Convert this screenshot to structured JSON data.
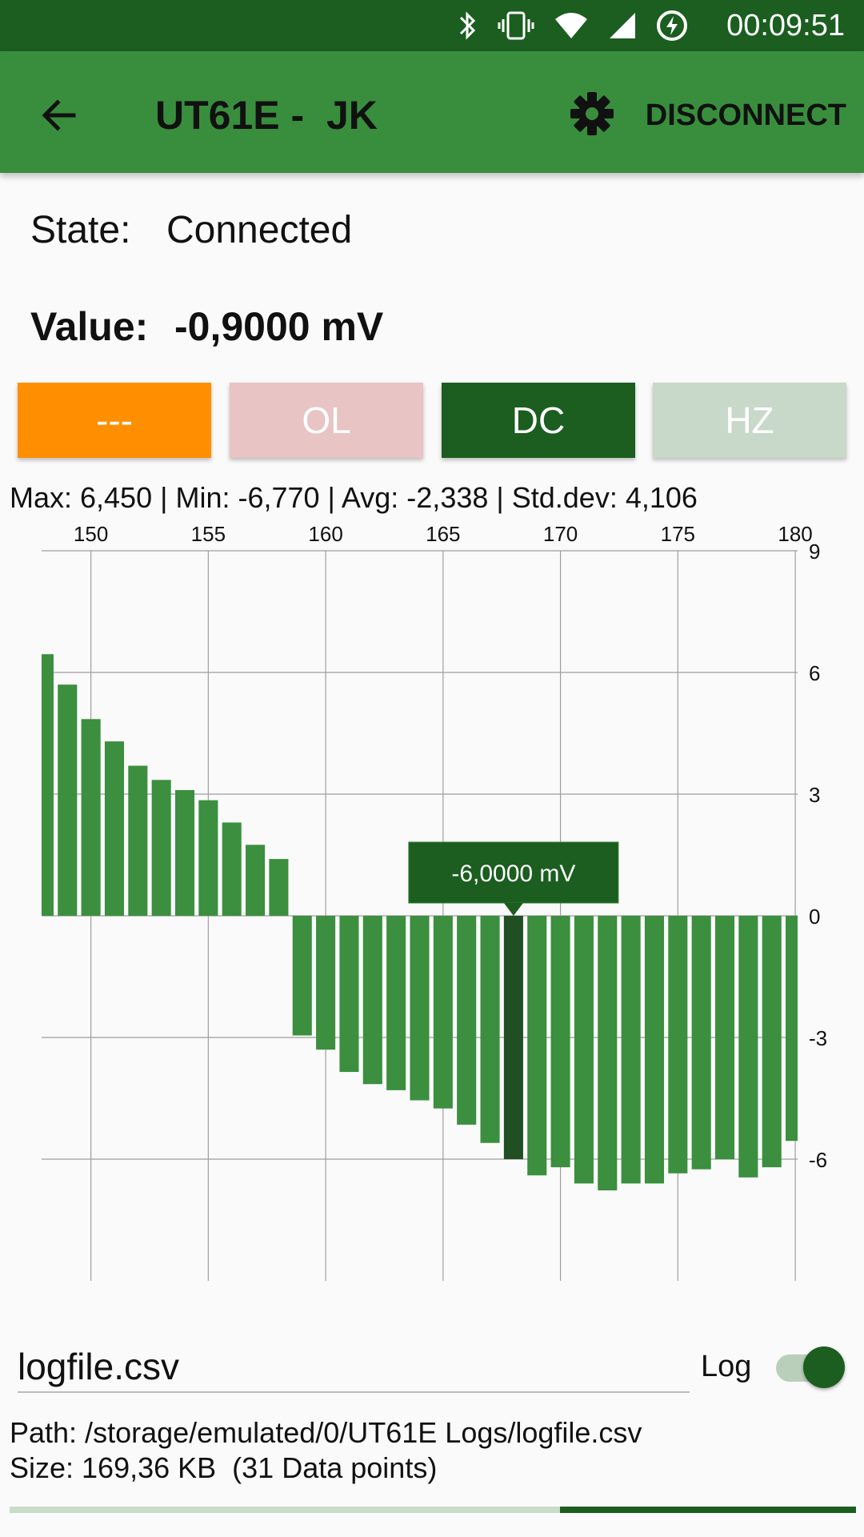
{
  "status_bar": {
    "time": "00:09:51",
    "icons": [
      "bluetooth-icon",
      "vibrate-icon",
      "wifi-icon",
      "signal-icon",
      "battery-charging-icon"
    ]
  },
  "app_bar": {
    "title": "UT61E -  JK",
    "disconnect_label": "DISCONNECT"
  },
  "state": {
    "label": "State:",
    "value": "Connected"
  },
  "reading": {
    "label": "Value:",
    "value": "-0,9000 mV"
  },
  "mode_buttons": [
    {
      "label": "---",
      "color": "#ff8f00"
    },
    {
      "label": "OL",
      "color": "#e8c4c4"
    },
    {
      "label": "DC",
      "color": "#1b5e20"
    },
    {
      "label": "HZ",
      "color": "#c8d8c9"
    }
  ],
  "stats_text": "Max: 6,450 | Min: -6,770 | Avg: -2,338 | Std.dev: 4,106",
  "chart_data": {
    "type": "bar",
    "x": [
      148,
      149,
      150,
      151,
      152,
      153,
      154,
      155,
      156,
      157,
      158,
      159,
      160,
      161,
      162,
      163,
      164,
      165,
      166,
      167,
      168,
      169,
      170,
      171,
      172,
      173,
      174,
      175,
      176,
      177,
      178,
      179,
      180
    ],
    "values": [
      6.45,
      5.7,
      4.85,
      4.3,
      3.7,
      3.35,
      3.1,
      2.85,
      2.3,
      1.75,
      1.4,
      -2.95,
      -3.3,
      -3.85,
      -4.15,
      -4.3,
      -4.55,
      -4.75,
      -5.15,
      -5.6,
      -6.0,
      -6.4,
      -6.2,
      -6.6,
      -6.77,
      -6.6,
      -6.6,
      -6.35,
      -6.25,
      -6.0,
      -6.45,
      -6.2,
      -5.55
    ],
    "x_ticks": [
      150,
      155,
      160,
      165,
      170,
      175,
      180
    ],
    "y_ticks": [
      9,
      6,
      3,
      0,
      -3,
      -6
    ],
    "xlim": [
      147.9,
      180.1
    ],
    "ylim": [
      -9,
      9
    ],
    "grid": true,
    "bar_color": "#3b8f3f",
    "highlight_color": "#1f4f22",
    "highlight_index": 20,
    "tooltip": "-6,0000 mV"
  },
  "log": {
    "filename": "logfile.csv",
    "toggle_label": "Log",
    "toggle_on": true,
    "path_text": "Path: /storage/emulated/0/UT61E Logs/logfile.csv",
    "size_text": "Size: 169,36 KB  (31 Data points)",
    "progress": 0.35
  }
}
